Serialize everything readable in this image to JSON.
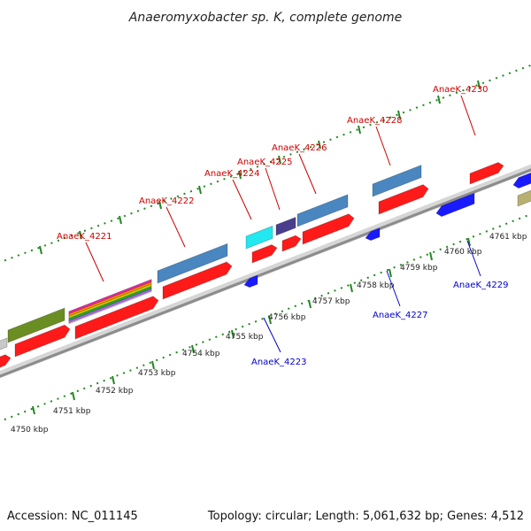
{
  "title": "Anaeromyxobacter sp. K, complete genome",
  "footer": {
    "accession": "Accession: NC_011145",
    "summary": "Topology: circular; Length: 5,061,632 bp; Genes: 4,512"
  },
  "colors": {
    "forward_label": "#cc0000",
    "reverse_label": "#0000cc",
    "backbone": "#999999",
    "tick": "#228822",
    "gene_red": "#ff1a1a",
    "gene_steelblue": "#4a86c0",
    "gene_blue": "#1a1aff",
    "gene_olive": "#6b8e23",
    "gene_cyan": "#22e8f0",
    "gene_purple": "#4a3f8c",
    "gene_khaki": "#b8b070",
    "gene_gray": "#c8c8c8"
  },
  "tick_labels": [
    "4750 kbp",
    "4751 kbp",
    "4752 kbp",
    "4753 kbp",
    "4754 kbp",
    "4755 kbp",
    "4756 kbp",
    "4757 kbp",
    "4758 kbp",
    "4759 kbp",
    "4760 kbp",
    "4761 kbp"
  ],
  "gene_labels": {
    "forward": [
      "AnaeK_4221",
      "AnaeK_4222",
      "AnaeK_4224",
      "AnaeK_4225",
      "AnaeK_4226",
      "AnaeK_4228",
      "AnaeK_4230"
    ],
    "reverse": [
      "AnaeK_4223",
      "AnaeK_4227",
      "AnaeK_4229"
    ]
  }
}
